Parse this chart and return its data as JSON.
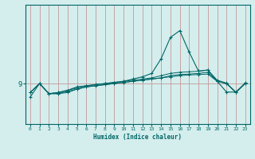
{
  "xlabel": "Humidex (Indice chaleur)",
  "background_color": "#d4eeed",
  "line_color": "#006666",
  "grid_v_color": "#c49898",
  "grid_h_color": "#c49898",
  "xlim": [
    -0.5,
    23.5
  ],
  "ylim": [
    7.2,
    12.5
  ],
  "x_ticks": [
    0,
    1,
    2,
    3,
    4,
    5,
    6,
    7,
    8,
    9,
    10,
    11,
    12,
    13,
    14,
    15,
    16,
    17,
    18,
    19,
    20,
    21,
    22,
    23
  ],
  "ytick_val": 9,
  "series_flat": [
    [
      8.6,
      9.0,
      8.55,
      8.55,
      8.6,
      8.75,
      8.85,
      8.9,
      8.95,
      9.0,
      9.05,
      9.1,
      9.15,
      9.2,
      9.25,
      9.3,
      9.35,
      9.38,
      9.4,
      9.42,
      9.1,
      9.0,
      8.6,
      9.0
    ],
    [
      8.6,
      9.0,
      8.55,
      8.55,
      8.65,
      8.75,
      8.85,
      8.9,
      8.95,
      9.0,
      9.05,
      9.1,
      9.15,
      9.2,
      9.25,
      9.35,
      9.4,
      9.42,
      9.45,
      9.5,
      9.1,
      9.0,
      8.6,
      9.02
    ],
    [
      8.6,
      9.0,
      8.55,
      8.6,
      8.7,
      8.8,
      8.9,
      8.95,
      9.0,
      9.05,
      9.1,
      9.15,
      9.2,
      9.25,
      9.35,
      9.45,
      9.5,
      9.52,
      9.55,
      9.6,
      9.15,
      9.02,
      8.62,
      9.03
    ]
  ],
  "series_peak": [
    8.4,
    9.0,
    8.55,
    8.6,
    8.7,
    8.85,
    8.9,
    8.95,
    9.0,
    9.05,
    9.1,
    9.2,
    9.3,
    9.45,
    10.1,
    11.05,
    11.35,
    10.4,
    9.55,
    9.6,
    9.1,
    8.62,
    8.62,
    9.0
  ]
}
